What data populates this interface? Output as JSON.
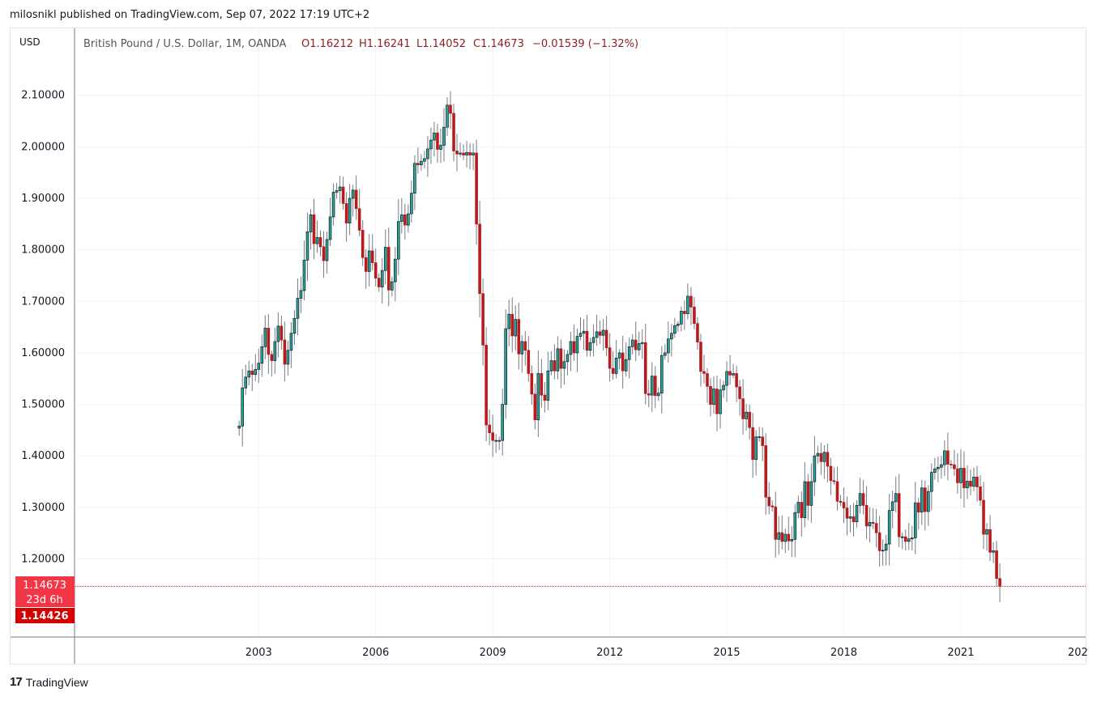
{
  "header": {
    "published": "milosnikl published on TradingView.com, Sep 07, 2022 17:19 UTC+2"
  },
  "legend": {
    "symbol": "British Pound / U.S. Dollar, 1M, OANDA",
    "open": "O1.16212",
    "high": "H1.16241",
    "low": "L1.14052",
    "close": "C1.14673",
    "change": "−0.01539 (−1.32%)"
  },
  "axis": {
    "currency": "USD"
  },
  "price_tags": {
    "last": "1.14673",
    "countdown": "23d 6h",
    "bid": "1.14426"
  },
  "footer": {
    "brand": "TradingView",
    "brand_mark": "17"
  },
  "colors": {
    "up": "#26a69a",
    "up_border": "#131722",
    "down": "#b71c1c",
    "last_line": "#c62828",
    "last_tag": "#f23645",
    "bid_tag": "#d50000",
    "grid": "#f0f3fa"
  },
  "chart_data": {
    "type": "candlestick",
    "interval": "1M",
    "ylim": [
      1.05,
      2.23
    ],
    "y_ticks": [
      "1.20000",
      "1.30000",
      "1.40000",
      "1.50000",
      "1.60000",
      "1.70000",
      "1.80000",
      "1.90000",
      "2.00000",
      "2.10000"
    ],
    "x_ticks": [
      "2003",
      "2006",
      "2009",
      "2012",
      "2015",
      "2018",
      "2021",
      "202"
    ],
    "x_range": [
      1998.3,
      2024.2
    ],
    "last_price": 1.14673,
    "series": [
      {
        "name": "British Pound / U.S. Dollar",
        "x_start": 2002.5,
        "close": [
          1.458,
          1.532,
          1.553,
          1.565,
          1.558,
          1.568,
          1.58,
          1.612,
          1.648,
          1.597,
          1.585,
          1.622,
          1.652,
          1.625,
          1.578,
          1.605,
          1.638,
          1.667,
          1.706,
          1.721,
          1.78,
          1.835,
          1.868,
          1.812,
          1.824,
          1.806,
          1.779,
          1.82,
          1.864,
          1.912,
          1.915,
          1.922,
          1.89,
          1.852,
          1.9,
          1.916,
          1.88,
          1.838,
          1.785,
          1.758,
          1.798,
          1.775,
          1.745,
          1.728,
          1.76,
          1.805,
          1.722,
          1.738,
          1.782,
          1.855,
          1.868,
          1.848,
          1.87,
          1.91,
          1.968,
          1.965,
          1.972,
          1.977,
          1.996,
          2.013,
          2.027,
          1.995,
          2.003,
          2.038,
          2.081,
          2.065,
          1.992,
          1.986,
          1.988,
          1.984,
          1.989,
          1.984,
          1.988,
          1.85,
          1.715,
          1.615,
          1.46,
          1.445,
          1.43,
          1.43,
          1.43,
          1.5,
          1.647,
          1.675,
          1.633,
          1.665,
          1.598,
          1.622,
          1.605,
          1.56,
          1.52,
          1.47,
          1.56,
          1.518,
          1.508,
          1.565,
          1.585,
          1.565,
          1.608,
          1.57,
          1.583,
          1.597,
          1.622,
          1.6,
          1.632,
          1.638,
          1.642,
          1.605,
          1.62,
          1.63,
          1.641,
          1.634,
          1.644,
          1.61,
          1.57,
          1.56,
          1.59,
          1.6,
          1.565,
          1.587,
          1.612,
          1.625,
          1.606,
          1.618,
          1.62,
          1.521,
          1.518,
          1.555,
          1.517,
          1.522,
          1.595,
          1.6,
          1.627,
          1.638,
          1.653,
          1.656,
          1.681,
          1.676,
          1.71,
          1.689,
          1.657,
          1.621,
          1.564,
          1.56,
          1.535,
          1.5,
          1.53,
          1.482,
          1.528,
          1.537,
          1.564,
          1.557,
          1.56,
          1.534,
          1.511,
          1.472,
          1.485,
          1.455,
          1.393,
          1.437,
          1.437,
          1.42,
          1.32,
          1.303,
          1.301,
          1.238,
          1.251,
          1.234,
          1.248,
          1.235,
          1.238,
          1.29,
          1.31,
          1.28,
          1.35,
          1.304,
          1.35,
          1.4,
          1.405,
          1.389,
          1.407,
          1.38,
          1.352,
          1.35,
          1.312,
          1.31,
          1.299,
          1.279,
          1.282,
          1.272,
          1.304,
          1.327,
          1.304,
          1.264,
          1.271,
          1.269,
          1.251,
          1.216,
          1.217,
          1.229,
          1.294,
          1.311,
          1.327,
          1.243,
          1.243,
          1.234,
          1.239,
          1.241,
          1.309,
          1.291,
          1.338,
          1.292,
          1.331,
          1.368,
          1.375,
          1.378,
          1.383,
          1.41,
          1.384,
          1.383,
          1.375,
          1.348,
          1.376,
          1.338,
          1.351,
          1.341,
          1.359,
          1.34,
          1.314,
          1.248,
          1.257,
          1.213,
          1.216,
          1.162,
          1.147
        ]
      }
    ]
  }
}
